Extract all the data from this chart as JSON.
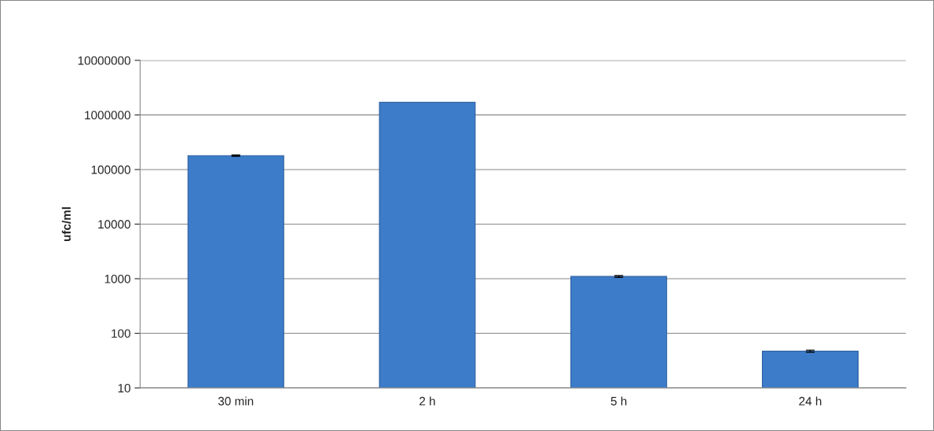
{
  "chart_data": {
    "type": "bar",
    "ylabel": "ufc/ml",
    "categories": [
      "30 min",
      "2 h",
      "5 h",
      "24 h"
    ],
    "values": [
      180000,
      1700000,
      1100,
      47
    ],
    "errors": [
      5000,
      null,
      40,
      2
    ],
    "color": "#3d7cc9",
    "log": "y",
    "ylim": [
      10,
      10000000
    ],
    "yticks": [
      10,
      100,
      1000,
      10000,
      100000,
      1000000,
      10000000
    ],
    "grid": "y",
    "legend": false
  }
}
